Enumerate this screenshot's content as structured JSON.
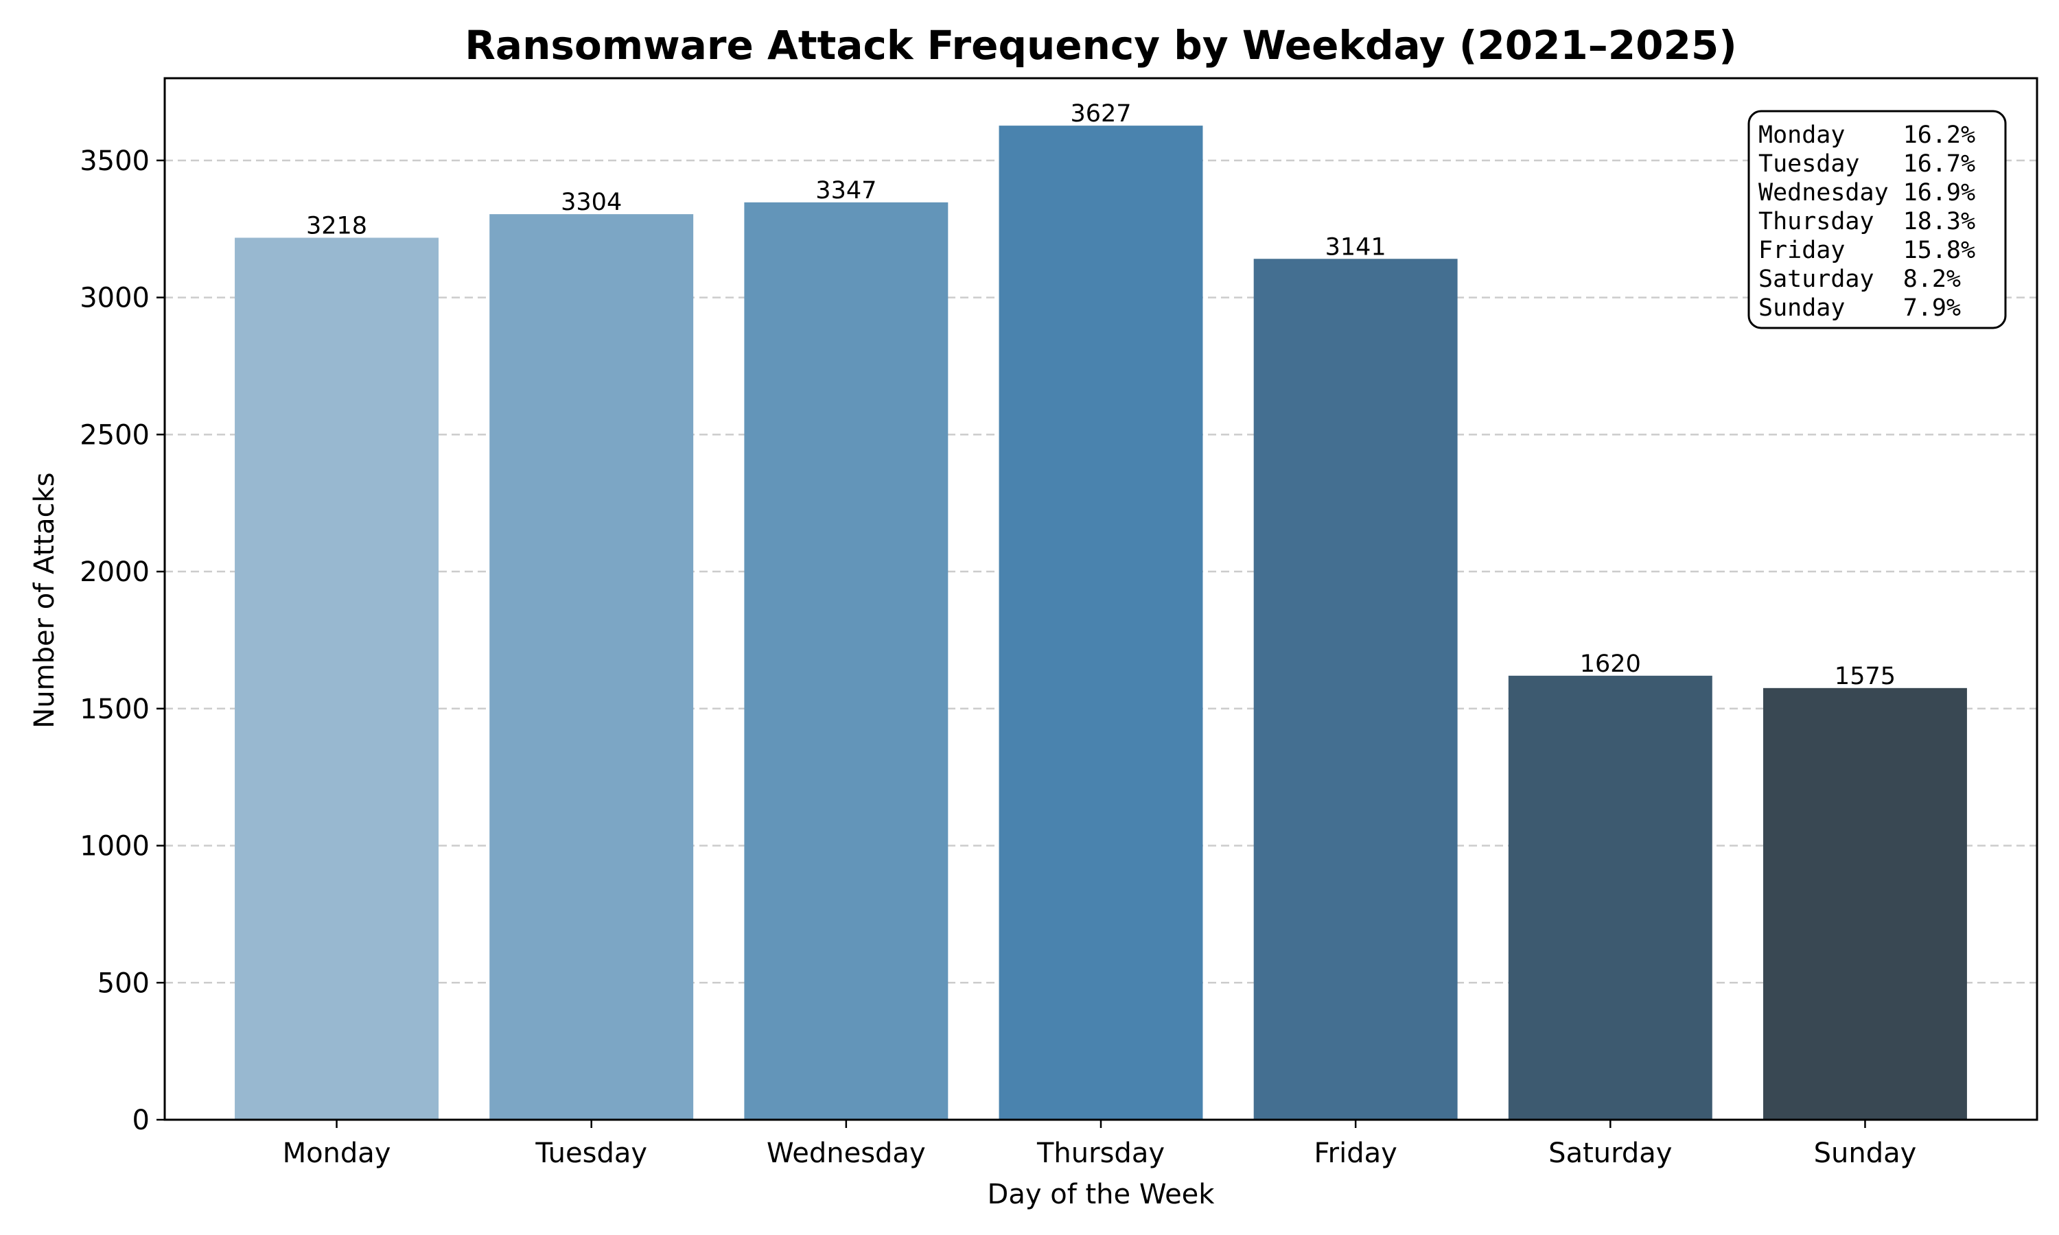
{
  "chart_data": {
    "type": "bar",
    "title": "Ransomware Attack Frequency by Weekday (2021–2025)",
    "xlabel": "Day of the Week",
    "ylabel": "Number of Attacks",
    "categories": [
      "Monday",
      "Tuesday",
      "Wednesday",
      "Thursday",
      "Friday",
      "Saturday",
      "Sunday"
    ],
    "values": [
      3218,
      3304,
      3347,
      3627,
      3141,
      1620,
      1575
    ],
    "data_labels": [
      "3218",
      "3304",
      "3347",
      "3627",
      "3141",
      "1620",
      "1575"
    ],
    "ylim": [
      0,
      3800
    ],
    "yticks": [
      0,
      500,
      1000,
      1500,
      2000,
      2500,
      3000,
      3500
    ],
    "ytick_labels": [
      "0",
      "500",
      "1000",
      "1500",
      "2000",
      "2500",
      "3000",
      "3500"
    ],
    "grid": "y-dashed",
    "colors": [
      "#98b8d0",
      "#7ca6c5",
      "#6395b9",
      "#4a83ae",
      "#446f91",
      "#3d5a70",
      "#394853"
    ],
    "percentages_box": {
      "placement": "top-right",
      "rows": [
        {
          "day": "Monday",
          "pct": "16.2%"
        },
        {
          "day": "Tuesday",
          "pct": "16.7%"
        },
        {
          "day": "Wednesday",
          "pct": "16.9%"
        },
        {
          "day": "Thursday",
          "pct": "18.3%"
        },
        {
          "day": "Friday",
          "pct": "15.8%"
        },
        {
          "day": "Saturday",
          "pct": "8.2%"
        },
        {
          "day": "Sunday",
          "pct": "7.9%"
        }
      ]
    }
  }
}
